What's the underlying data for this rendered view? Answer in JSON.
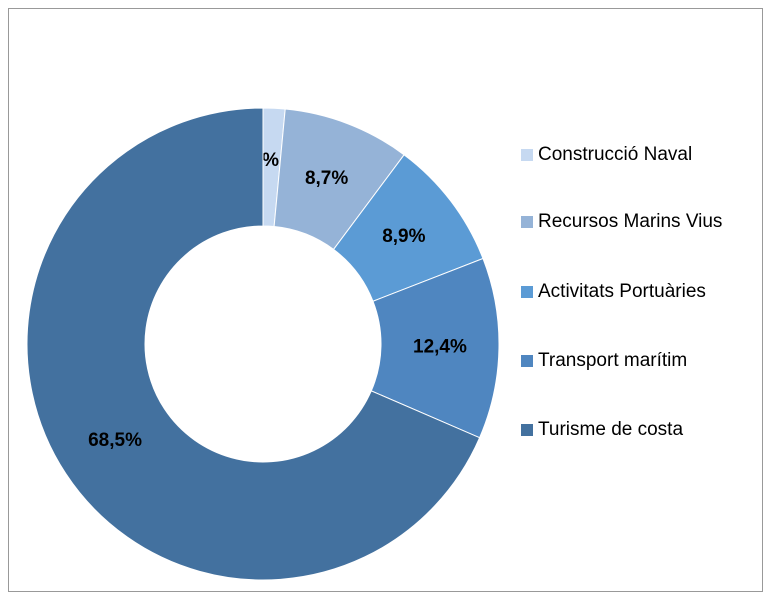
{
  "chart_data": {
    "type": "donut",
    "categories": [
      "Construcció Naval",
      "Recursos Marins Vius",
      "Activitats Portuàries",
      "Transport marítim",
      "Turisme de costa"
    ],
    "values": [
      1.5,
      8.7,
      8.9,
      12.4,
      68.5
    ],
    "value_labels": [
      "1,5%",
      "8,7%",
      "8,9%",
      "12,4%",
      "68,5%"
    ],
    "colors": [
      "#c6d9f1",
      "#95b3d7",
      "#5b9bd5",
      "#4f86c0",
      "#43719f"
    ],
    "legend": "right"
  }
}
